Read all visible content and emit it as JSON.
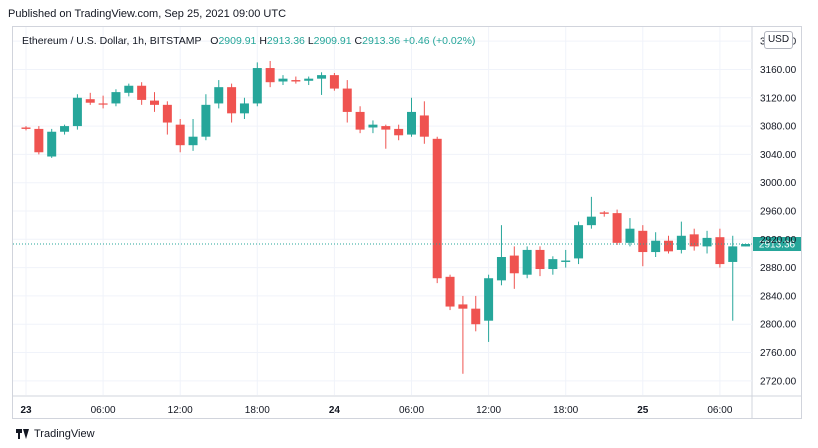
{
  "header": {
    "published": "Published on TradingView.com, Sep 25, 2021 09:00 UTC"
  },
  "legend": {
    "symbol": "Ethereum / U.S. Dollar, 1h, BITSTAMP",
    "o_label": "O",
    "o_value": "2909.91",
    "h_label": "H",
    "h_value": "2913.36",
    "l_label": "L",
    "l_value": "2909.91",
    "c_label": "C",
    "c_value": "2913.36",
    "change": "+0.46 (+0.02%)"
  },
  "currency_badge": "USD",
  "footer": {
    "brand": "TradingView"
  },
  "colors": {
    "up": "#26a69a",
    "down": "#ef5350",
    "grid": "#f0f3fa",
    "price_line": "#26a69a"
  },
  "chart_data": {
    "type": "candlestick",
    "ylim": [
      2700,
      3220
    ],
    "y_ticks": [
      "2720.00",
      "2760.00",
      "2800.00",
      "2840.00",
      "2880.00",
      "2920.00",
      "2960.00",
      "3000.00",
      "3040.00",
      "3080.00",
      "3120.00",
      "3160.00",
      "3200.00"
    ],
    "x_ticks": [
      {
        "label": "23",
        "index": 0
      },
      {
        "label": "06:00",
        "index": 6
      },
      {
        "label": "12:00",
        "index": 12
      },
      {
        "label": "18:00",
        "index": 18
      },
      {
        "label": "24",
        "index": 24
      },
      {
        "label": "06:00",
        "index": 30
      },
      {
        "label": "12:00",
        "index": 36
      },
      {
        "label": "18:00",
        "index": 42
      },
      {
        "label": "25",
        "index": 48
      },
      {
        "label": "06:00",
        "index": 54
      }
    ],
    "last_price": "2913.36",
    "candles": [
      {
        "o": 3078,
        "h": 3080,
        "l": 3074,
        "c": 3076
      },
      {
        "o": 3076,
        "h": 3080,
        "l": 3040,
        "c": 3043
      },
      {
        "o": 3037,
        "h": 3076,
        "l": 3035,
        "c": 3072
      },
      {
        "o": 3072,
        "h": 3082,
        "l": 3068,
        "c": 3080
      },
      {
        "o": 3080,
        "h": 3125,
        "l": 3075,
        "c": 3120
      },
      {
        "o": 3118,
        "h": 3127,
        "l": 3110,
        "c": 3113
      },
      {
        "o": 3112,
        "h": 3123,
        "l": 3105,
        "c": 3111
      },
      {
        "o": 3112,
        "h": 3132,
        "l": 3108,
        "c": 3128
      },
      {
        "o": 3127,
        "h": 3140,
        "l": 3122,
        "c": 3137
      },
      {
        "o": 3137,
        "h": 3142,
        "l": 3110,
        "c": 3117
      },
      {
        "o": 3116,
        "h": 3128,
        "l": 3100,
        "c": 3110
      },
      {
        "o": 3110,
        "h": 3115,
        "l": 3068,
        "c": 3085
      },
      {
        "o": 3082,
        "h": 3090,
        "l": 3043,
        "c": 3053
      },
      {
        "o": 3053,
        "h": 3090,
        "l": 3045,
        "c": 3065
      },
      {
        "o": 3065,
        "h": 3125,
        "l": 3060,
        "c": 3110
      },
      {
        "o": 3112,
        "h": 3145,
        "l": 3105,
        "c": 3135
      },
      {
        "o": 3135,
        "h": 3140,
        "l": 3085,
        "c": 3098
      },
      {
        "o": 3098,
        "h": 3120,
        "l": 3090,
        "c": 3112
      },
      {
        "o": 3112,
        "h": 3170,
        "l": 3108,
        "c": 3162
      },
      {
        "o": 3162,
        "h": 3172,
        "l": 3135,
        "c": 3142
      },
      {
        "o": 3143,
        "h": 3152,
        "l": 3138,
        "c": 3147
      },
      {
        "o": 3145,
        "h": 3150,
        "l": 3140,
        "c": 3143
      },
      {
        "o": 3144,
        "h": 3150,
        "l": 3138,
        "c": 3147
      },
      {
        "o": 3147,
        "h": 3156,
        "l": 3124,
        "c": 3152
      },
      {
        "o": 3152,
        "h": 3155,
        "l": 3130,
        "c": 3133
      },
      {
        "o": 3133,
        "h": 3145,
        "l": 3085,
        "c": 3100
      },
      {
        "o": 3100,
        "h": 3108,
        "l": 3070,
        "c": 3075
      },
      {
        "o": 3078,
        "h": 3088,
        "l": 3070,
        "c": 3082
      },
      {
        "o": 3080,
        "h": 3082,
        "l": 3048,
        "c": 3075
      },
      {
        "o": 3076,
        "h": 3082,
        "l": 3060,
        "c": 3067
      },
      {
        "o": 3068,
        "h": 3120,
        "l": 3065,
        "c": 3100
      },
      {
        "o": 3095,
        "h": 3115,
        "l": 3055,
        "c": 3065
      },
      {
        "o": 3062,
        "h": 3065,
        "l": 2858,
        "c": 2865
      },
      {
        "o": 2867,
        "h": 2870,
        "l": 2820,
        "c": 2825
      },
      {
        "o": 2828,
        "h": 2840,
        "l": 2730,
        "c": 2822
      },
      {
        "o": 2822,
        "h": 2840,
        "l": 2790,
        "c": 2800
      },
      {
        "o": 2805,
        "h": 2870,
        "l": 2775,
        "c": 2865
      },
      {
        "o": 2862,
        "h": 2940,
        "l": 2855,
        "c": 2895
      },
      {
        "o": 2897,
        "h": 2910,
        "l": 2850,
        "c": 2872
      },
      {
        "o": 2870,
        "h": 2910,
        "l": 2865,
        "c": 2905
      },
      {
        "o": 2905,
        "h": 2910,
        "l": 2868,
        "c": 2878
      },
      {
        "o": 2878,
        "h": 2896,
        "l": 2870,
        "c": 2892
      },
      {
        "o": 2888,
        "h": 2905,
        "l": 2880,
        "c": 2890
      },
      {
        "o": 2893,
        "h": 2945,
        "l": 2885,
        "c": 2940
      },
      {
        "o": 2940,
        "h": 2980,
        "l": 2935,
        "c": 2952
      },
      {
        "o": 2958,
        "h": 2960,
        "l": 2952,
        "c": 2956
      },
      {
        "o": 2957,
        "h": 2962,
        "l": 2912,
        "c": 2915
      },
      {
        "o": 2915,
        "h": 2950,
        "l": 2910,
        "c": 2935
      },
      {
        "o": 2932,
        "h": 2940,
        "l": 2882,
        "c": 2902
      },
      {
        "o": 2902,
        "h": 2930,
        "l": 2895,
        "c": 2918
      },
      {
        "o": 2918,
        "h": 2925,
        "l": 2900,
        "c": 2903
      },
      {
        "o": 2905,
        "h": 2945,
        "l": 2900,
        "c": 2925
      },
      {
        "o": 2927,
        "h": 2935,
        "l": 2904,
        "c": 2910
      },
      {
        "o": 2910,
        "h": 2932,
        "l": 2900,
        "c": 2922
      },
      {
        "o": 2923,
        "h": 2935,
        "l": 2880,
        "c": 2885
      },
      {
        "o": 2888,
        "h": 2925,
        "l": 2805,
        "c": 2910
      },
      {
        "o": 2909.91,
        "h": 2913.36,
        "l": 2909.91,
        "c": 2913.36
      }
    ]
  }
}
